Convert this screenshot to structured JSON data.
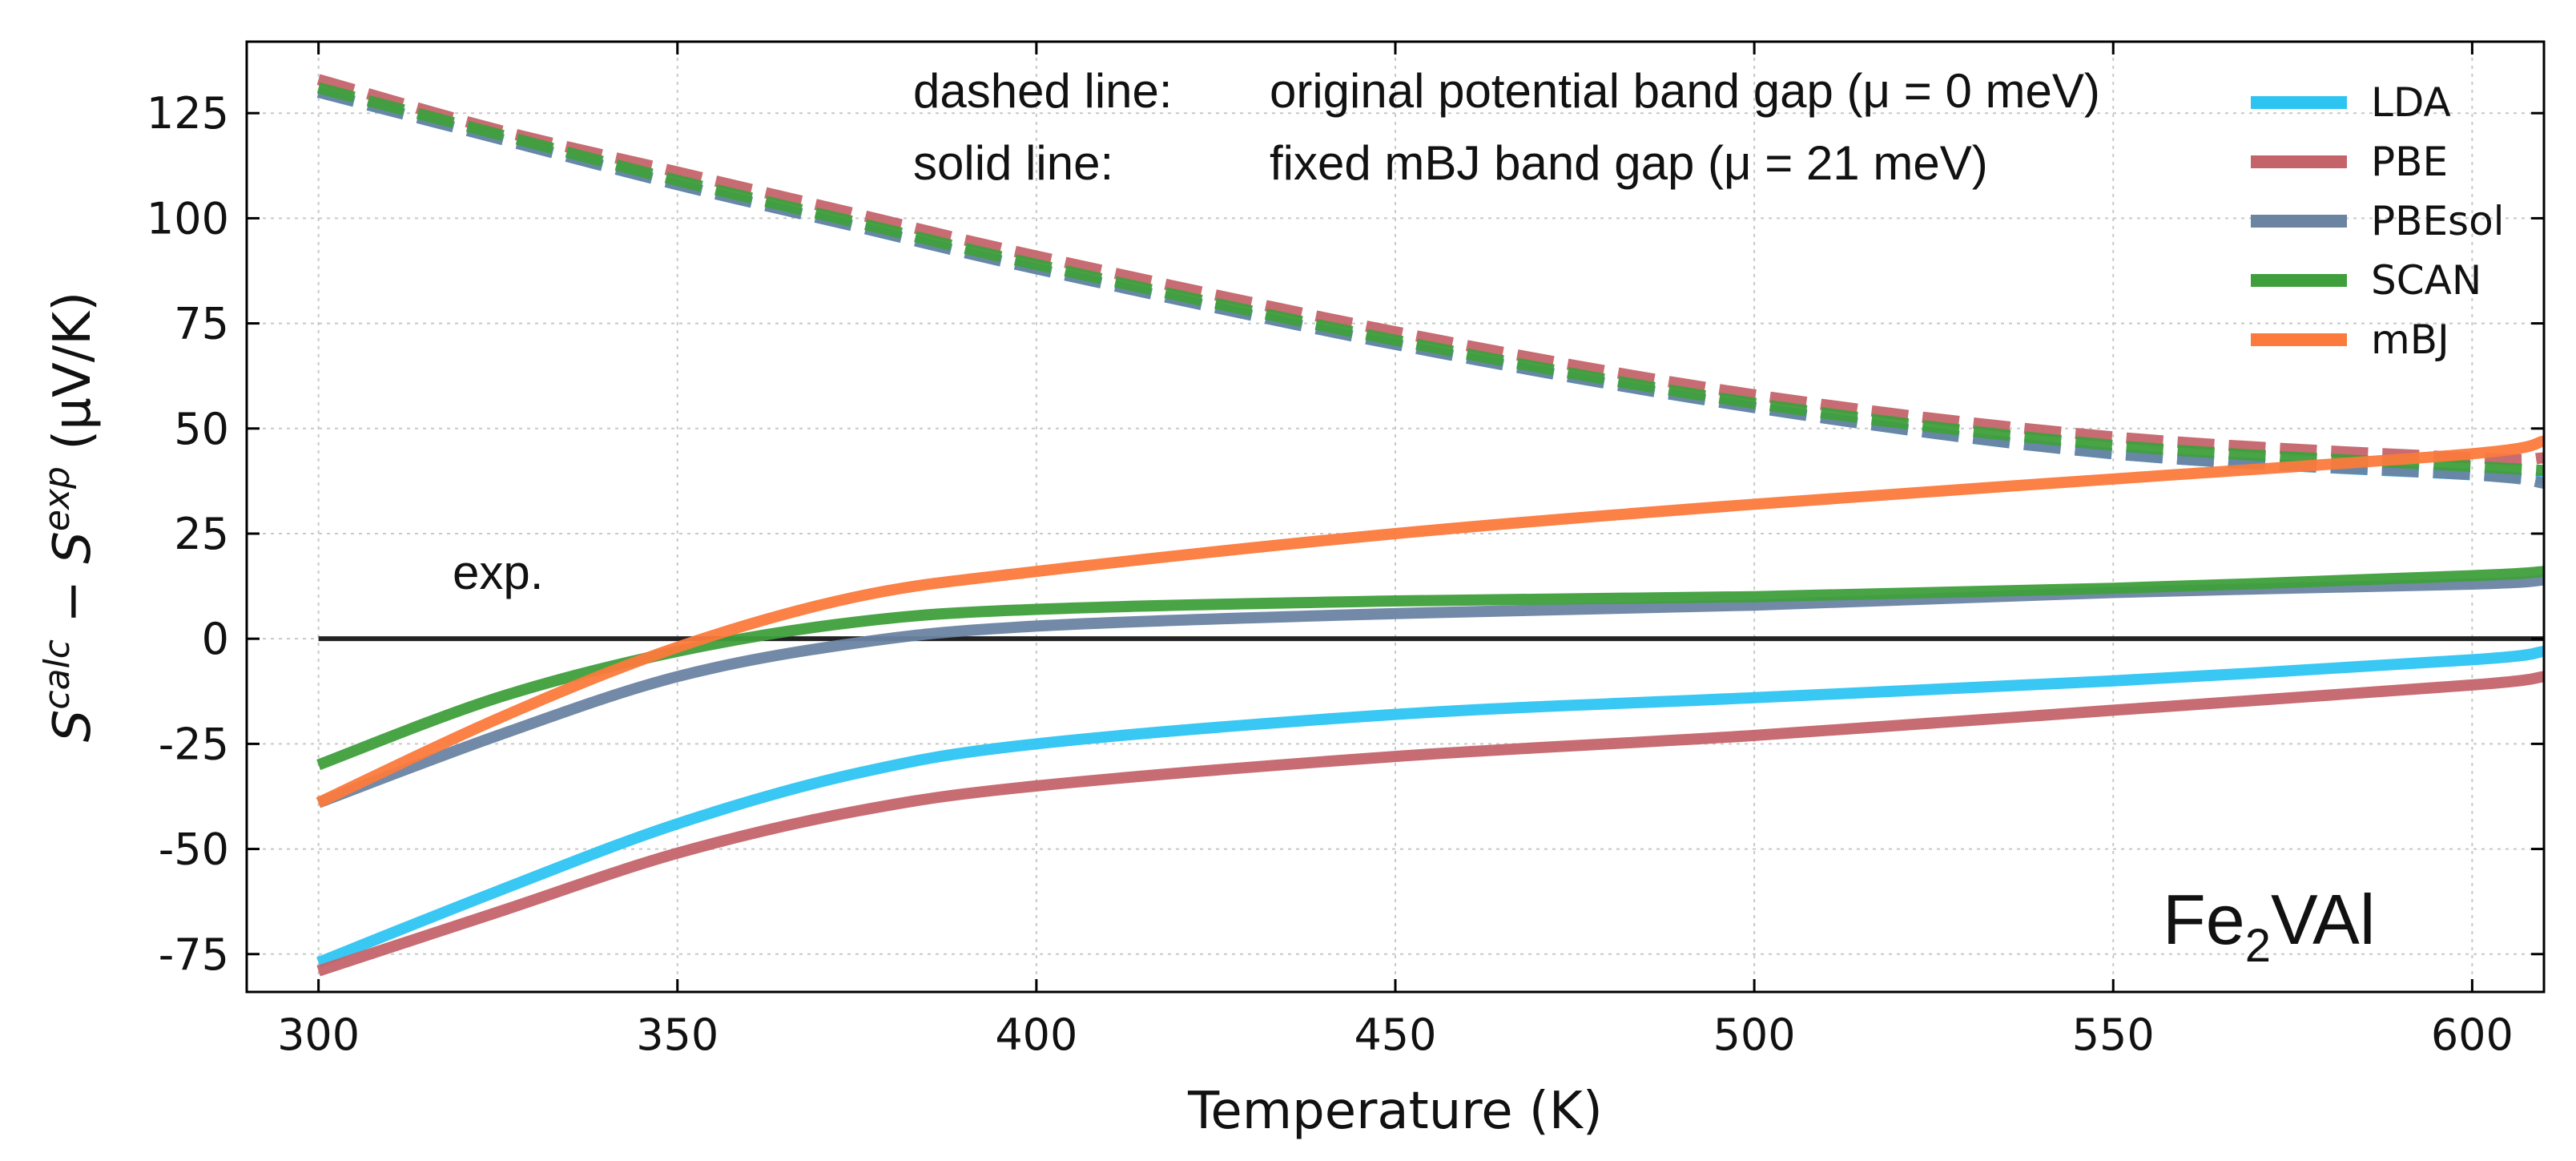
{
  "chart_data": {
    "type": "line",
    "xlabel": "Temperature (K)",
    "ylabel_parts": {
      "s1": "S",
      "sup1": "calc",
      "minus": " − ",
      "s2": "S",
      "sup2": "exp",
      "units": " (μV/K)"
    },
    "xlim": [
      290,
      610
    ],
    "ylim": [
      -84,
      142
    ],
    "xticks": [
      300,
      350,
      400,
      450,
      500,
      550,
      600
    ],
    "yticks": [
      -75,
      -50,
      -25,
      0,
      25,
      50,
      75,
      100,
      125
    ],
    "grid": true,
    "legend_position": "top-right",
    "annotations": {
      "dashed_key": "dashed line:",
      "dashed_desc": "original potential band gap (μ = 0 meV)",
      "solid_key": "solid line:",
      "solid_desc": "fixed mBJ band gap (μ = 21 meV)",
      "exp_label": "exp.",
      "compound_main": "Fe",
      "compound_sub": "2",
      "compound_end": "VAl"
    },
    "x": [
      300,
      325,
      350,
      375,
      400,
      450,
      500,
      550,
      600,
      610
    ],
    "reference_line": {
      "name": "exp.",
      "y": 0,
      "x_range": [
        300,
        610
      ],
      "color": "#222222"
    },
    "series": [
      {
        "name": "LDA",
        "style": "solid",
        "color": "#2ec4f2",
        "values": [
          -77,
          -60,
          -44,
          -32,
          -25,
          -18,
          -14,
          -10,
          -5,
          -3
        ]
      },
      {
        "name": "PBE",
        "style": "solid",
        "color": "#c4646a",
        "values": [
          -79,
          -65,
          -51,
          -41,
          -35,
          -28,
          -23,
          -17,
          -11,
          -9
        ]
      },
      {
        "name": "PBEsol",
        "style": "solid",
        "color": "#6a84a2",
        "values": [
          -39,
          -23,
          -9,
          -1,
          3,
          6,
          8,
          11,
          13,
          14
        ]
      },
      {
        "name": "SCAN",
        "style": "solid",
        "color": "#3f9f3c",
        "values": [
          -30,
          -14,
          -3,
          4,
          7,
          9,
          10,
          12,
          15,
          16
        ]
      },
      {
        "name": "mBJ",
        "style": "solid",
        "color": "#fb7a3c",
        "values": [
          -39,
          -19,
          -2,
          10,
          16,
          25,
          32,
          38,
          44,
          47
        ]
      },
      {
        "name": "LDA (original)",
        "style": "dashed",
        "color": "#2ec4f2",
        "values": [
          130,
          119,
          108,
          98,
          88,
          70,
          55,
          44,
          39,
          38
        ]
      },
      {
        "name": "PBE (original)",
        "style": "dashed",
        "color": "#c4646a",
        "values": [
          133,
          121,
          111,
          101,
          91,
          73,
          58,
          48,
          43,
          43
        ]
      },
      {
        "name": "PBEsol (original)",
        "style": "dashed",
        "color": "#6a84a2",
        "values": [
          130,
          119,
          108,
          98,
          88,
          70,
          55,
          44,
          39,
          37
        ]
      },
      {
        "name": "SCAN (original)",
        "style": "dashed",
        "color": "#3f9f3c",
        "values": [
          131,
          120,
          109,
          99,
          89,
          71,
          56,
          46,
          41,
          40
        ]
      }
    ],
    "legend": [
      {
        "label": "LDA",
        "color": "#2ec4f2"
      },
      {
        "label": "PBE",
        "color": "#c4646a"
      },
      {
        "label": "PBEsol",
        "color": "#6a84a2"
      },
      {
        "label": "SCAN",
        "color": "#3f9f3c"
      },
      {
        "label": "mBJ",
        "color": "#fb7a3c"
      }
    ]
  }
}
